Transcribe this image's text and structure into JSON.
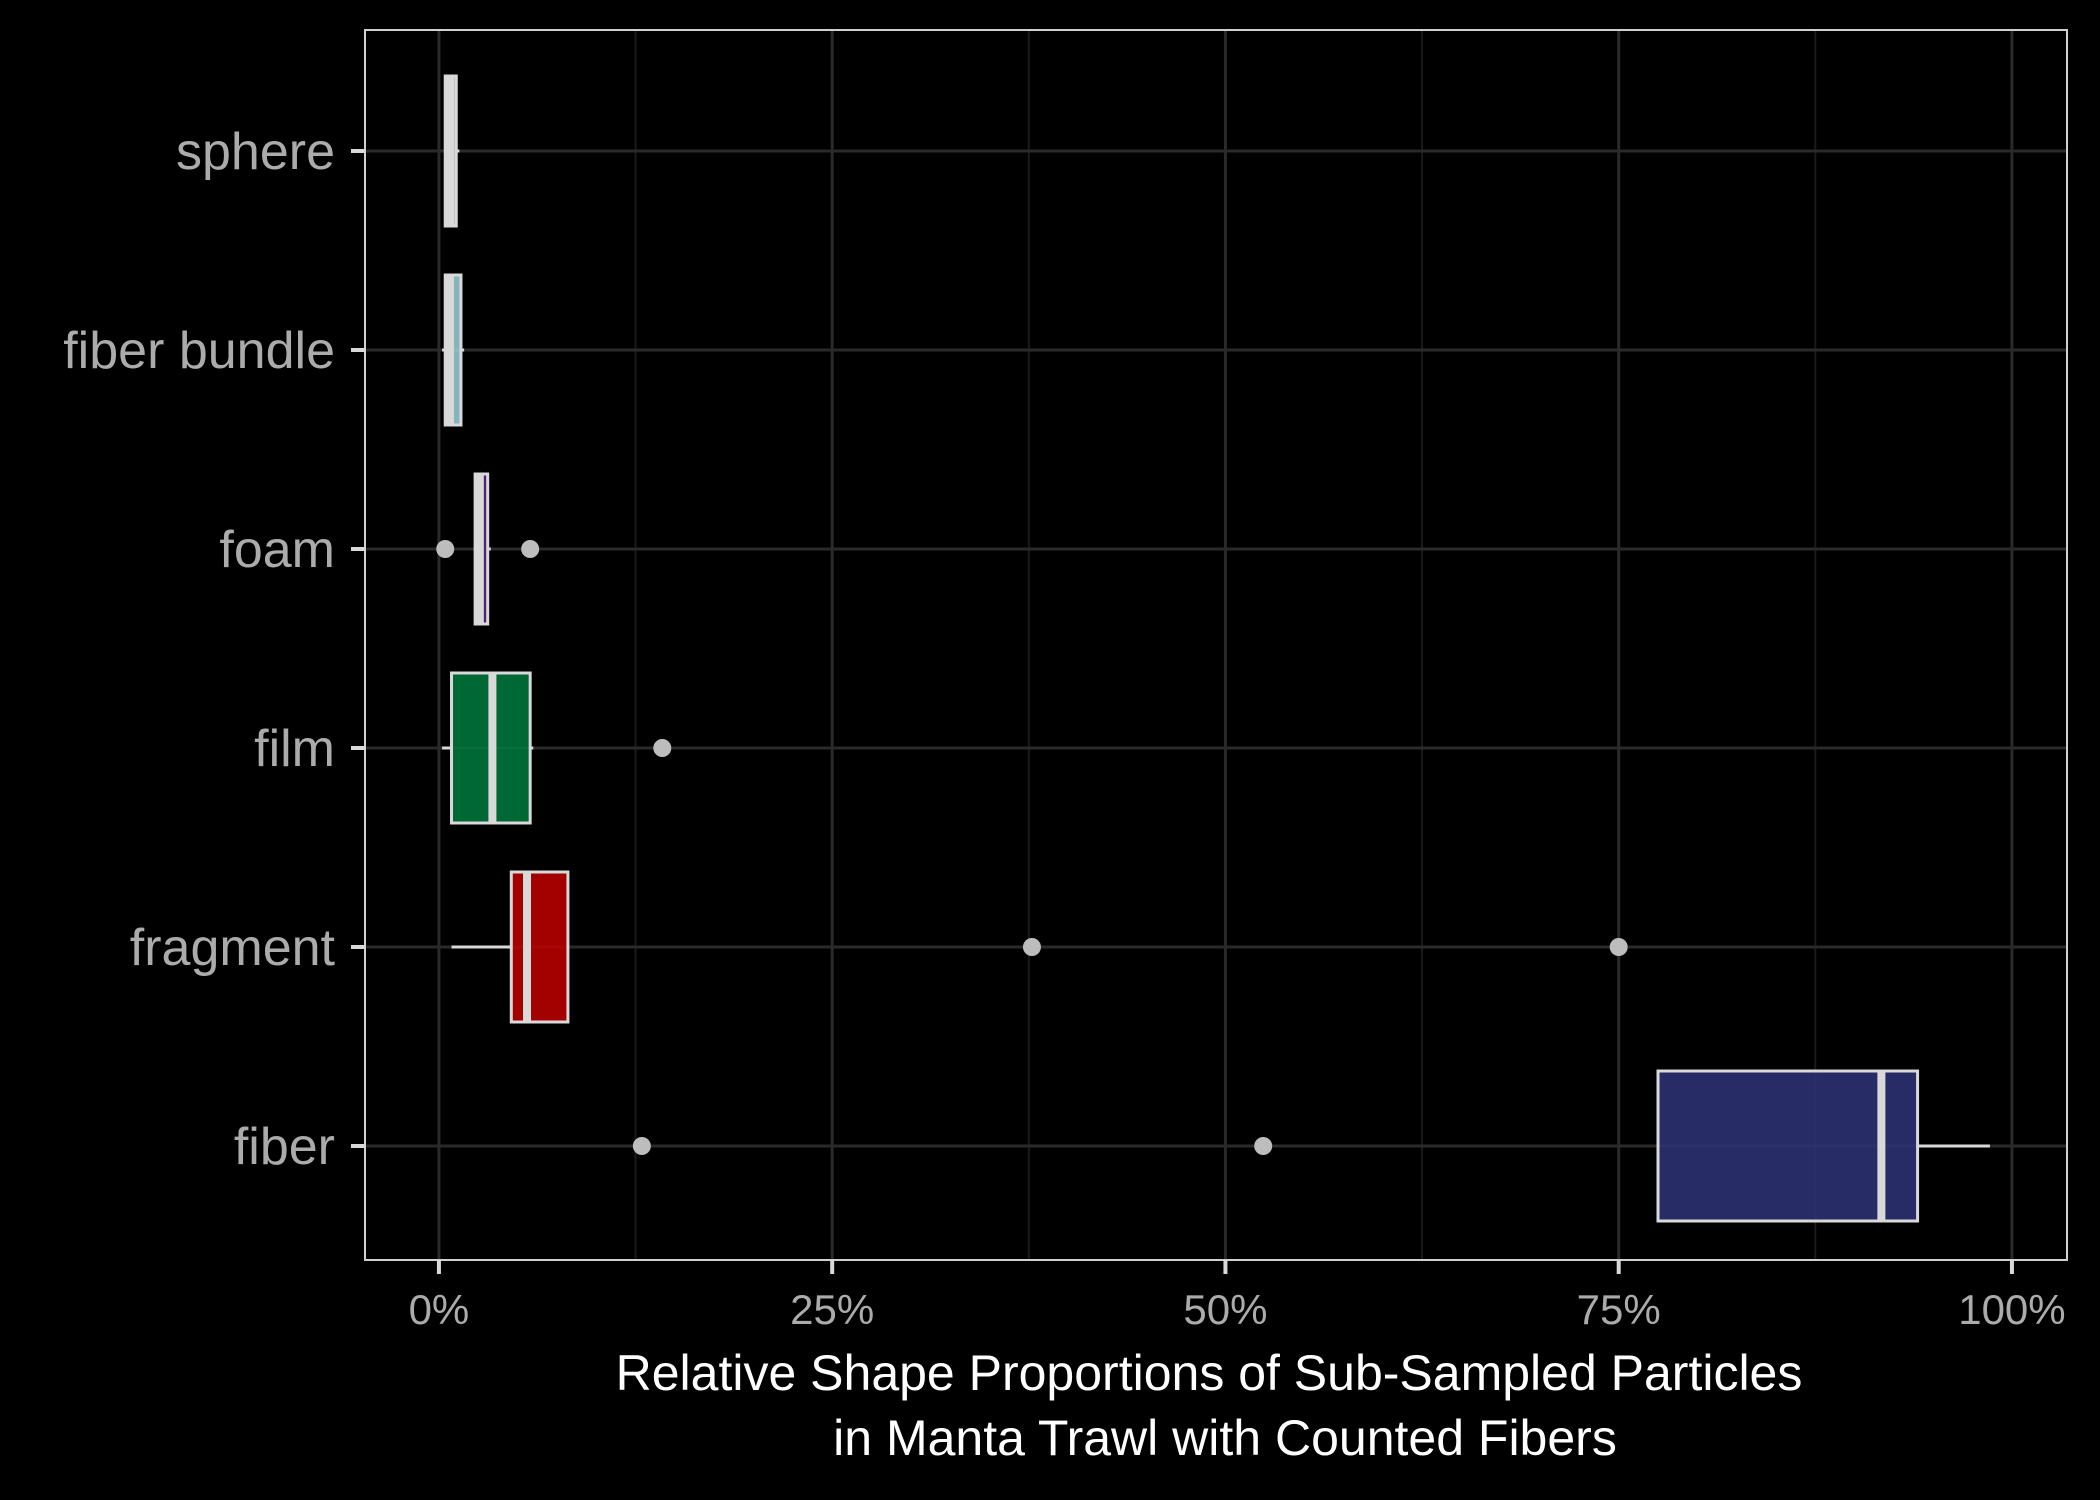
{
  "chart_data": {
    "type": "boxplot",
    "orientation": "horizontal",
    "xlabel": [
      "Relative Shape Proportions of Sub-Sampled Particles",
      "in Manta Trawl with Counted Fibers"
    ],
    "ylabel": "",
    "xlim": [
      -0.047,
      1.035
    ],
    "x_ticks": [
      {
        "value": 0,
        "label": "0%"
      },
      {
        "value": 0.25,
        "label": "25%"
      },
      {
        "value": 0.5,
        "label": "50%"
      },
      {
        "value": 0.75,
        "label": "75%"
      },
      {
        "value": 1.0,
        "label": "100%"
      }
    ],
    "grid": true,
    "categories": [
      "sphere",
      "fiber bundle",
      "foam",
      "film",
      "fragment",
      "fiber"
    ],
    "boxes": [
      {
        "category": "sphere",
        "whisker_low": 0.004,
        "q1": 0.004,
        "median": 0.007,
        "q3": 0.011,
        "whisker_high": 0.013,
        "outliers": [],
        "fill": "#d8d8d8",
        "box_height": 0.75
      },
      {
        "category": "fiber bundle",
        "whisker_low": 0.002,
        "q1": 0.004,
        "median": 0.007,
        "q3": 0.014,
        "whisker_high": 0.016,
        "outliers": [],
        "fill": "#9ed3dd",
        "box_height": 0.75
      },
      {
        "category": "foam",
        "whisker_low": 0.023,
        "q1": 0.023,
        "median": 0.026,
        "q3": 0.031,
        "whisker_high": 0.033,
        "outliers": [
          0.004,
          0.058
        ],
        "fill": "#5a2a82",
        "box_height": 0.75
      },
      {
        "category": "film",
        "whisker_low": 0.002,
        "q1": 0.008,
        "median": 0.034,
        "q3": 0.058,
        "whisker_high": 0.06,
        "outliers": [
          0.142
        ],
        "fill": "#007a3d",
        "box_height": 0.75
      },
      {
        "category": "fragment",
        "whisker_low": 0.008,
        "q1": 0.046,
        "median": 0.056,
        "q3": 0.082,
        "whisker_high": 0.082,
        "outliers": [
          0.377,
          0.75
        ],
        "fill": "#c00000",
        "box_height": 0.75
      },
      {
        "category": "fiber",
        "whisker_low": 0.775,
        "q1": 0.775,
        "median": 0.917,
        "q3": 0.94,
        "whisker_high": 0.986,
        "outliers": [
          0.129,
          0.524
        ],
        "fill": "#2e3478",
        "box_height": 0.75
      }
    ]
  },
  "colors": {
    "background": "#000000",
    "panel_border": "#d0d0d0",
    "grid_major": "#2a2a2a",
    "grid_minor": "#1a1a1a",
    "box_outline": "#d9d9d9",
    "outlier": "#bdbdbd",
    "tick_text": "#ababab",
    "axis_title": "#ffffff"
  }
}
